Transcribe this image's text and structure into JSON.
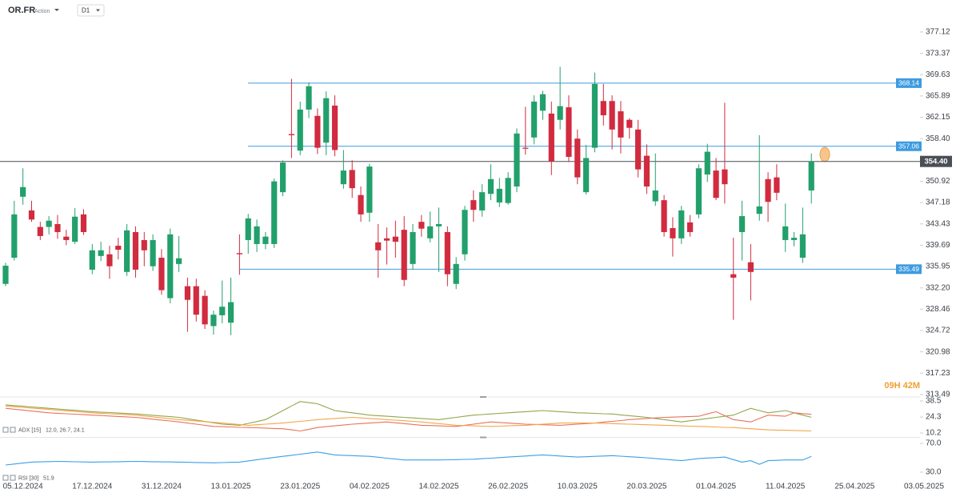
{
  "chart_data": {
    "type": "candlestick",
    "symbol": "OR.FR",
    "instrument_type": "Action",
    "timeframe": "D1",
    "categories": [
      null,
      null,
      "05.12.2024",
      null,
      null,
      null,
      null,
      null,
      null,
      null,
      "17.12.2024",
      null,
      null,
      null,
      null,
      null,
      null,
      null,
      "31.12.2024",
      null,
      null,
      null,
      null,
      null,
      null,
      null,
      "13.01.2025",
      null,
      null,
      null,
      null,
      null,
      null,
      null,
      "23.01.2025",
      null,
      null,
      null,
      null,
      null,
      null,
      null,
      "04.02.2025",
      null,
      null,
      null,
      null,
      null,
      null,
      null,
      "14.02.2025",
      null,
      null,
      null,
      null,
      null,
      null,
      null,
      "26.02.2025",
      null,
      null,
      null,
      null,
      null,
      null,
      null,
      "10.03.2025",
      null,
      null,
      null,
      null,
      null,
      null,
      null,
      "20.03.2025",
      null,
      null,
      null,
      null,
      null,
      null,
      null,
      "01.04.2025",
      null,
      null,
      null,
      null,
      null,
      null,
      null,
      "11.04.2025",
      null,
      null,
      null,
      null,
      null,
      null,
      null,
      "25.04.2025",
      null,
      null,
      null,
      null,
      null,
      null,
      null,
      "03.05.2025"
    ],
    "open": [
      332.9,
      337.5,
      348.2,
      345.8,
      342.9,
      342.9,
      343.4,
      341.2,
      340.3,
      345.1,
      335.4,
      337.8,
      338.1,
      339.6,
      335.0,
      342.0,
      340.6,
      336.0,
      337.5,
      330.4,
      336.4,
      332.5,
      332.5,
      330.8,
      325.5,
      327.4,
      326.1,
      338.3,
      340.6,
      339.9,
      339.9,
      339.9,
      349.0,
      359.2,
      356.3,
      363.5,
      362.4,
      357.7,
      364.2,
      350.4,
      352.9,
      348.5,
      345.4,
      340.2,
      340.9,
      341.2,
      342.4,
      336.4,
      343.8,
      340.9,
      343.0,
      342.0,
      332.9,
      338.1,
      347.6,
      345.8,
      348.7,
      347.2,
      347.1,
      350.0,
      356.8,
      358.6,
      363.3,
      362.8,
      361.7,
      363.9,
      358.4,
      349.0,
      356.8,
      365.0,
      365.0,
      363.2,
      361.7,
      360.0,
      355.4,
      347.4,
      347.6,
      342.7,
      340.9,
      343.7,
      345.1,
      352.1,
      352.8,
      353.0,
      334.6,
      342.0,
      336.7,
      345.2,
      351.3,
      351.6,
      340.6,
      340.6,
      337.5,
      349.3,
      null,
      null,
      null,
      null,
      null,
      null,
      null,
      null,
      null,
      null,
      null,
      null,
      null
    ],
    "high": [
      336.6,
      347.5,
      353.2,
      347.5,
      343.8,
      344.8,
      345.0,
      342.4,
      346.2,
      346.0,
      339.9,
      340.3,
      339.6,
      341.0,
      343.4,
      343.0,
      342.0,
      341.6,
      339.0,
      342.6,
      341.3,
      334.0,
      333.8,
      331.8,
      328.2,
      333.5,
      334.0,
      341.6,
      345.2,
      344.2,
      342.0,
      351.4,
      354.6,
      368.9,
      364.9,
      368.3,
      363.7,
      366.7,
      366.0,
      356.4,
      354.6,
      350.0,
      354.0,
      343.4,
      342.8,
      344.0,
      344.8,
      343.4,
      345.0,
      345.6,
      346.3,
      343.0,
      337.6,
      346.6,
      349.3,
      350.4,
      353.9,
      351.5,
      352.5,
      360.2,
      364.0,
      366.0,
      366.8,
      364.9,
      371.0,
      366.0,
      360.0,
      357.3,
      370.0,
      368.0,
      366.0,
      365.0,
      362.0,
      361.7,
      357.4,
      355.8,
      348.5,
      344.6,
      346.6,
      345.0,
      353.9,
      357.5,
      355.0,
      364.7,
      341.0,
      347.5,
      339.9,
      359.0,
      352.5,
      353.9,
      347.0,
      342.0,
      346.3,
      355.8,
      null,
      null,
      null,
      null,
      null,
      null,
      null,
      null,
      null,
      null,
      null,
      null,
      null
    ],
    "low": [
      332.5,
      337.0,
      346.8,
      343.8,
      340.6,
      341.6,
      340.8,
      339.7,
      339.9,
      341.5,
      334.6,
      336.9,
      333.8,
      337.2,
      334.3,
      334.0,
      336.0,
      335.2,
      331.0,
      329.5,
      335.0,
      324.5,
      326.3,
      325.0,
      324.0,
      326.0,
      323.9,
      334.5,
      338.2,
      338.5,
      339.0,
      339.2,
      348.3,
      355.0,
      355.5,
      362.0,
      355.7,
      355.5,
      355.3,
      349.6,
      348.0,
      343.8,
      343.8,
      334.0,
      336.3,
      337.5,
      332.5,
      335.4,
      341.2,
      340.2,
      335.0,
      332.5,
      332.0,
      337.0,
      343.8,
      344.7,
      347.6,
      346.4,
      346.8,
      349.0,
      355.6,
      357.4,
      361.7,
      352.0,
      360.0,
      354.3,
      350.4,
      348.6,
      356.0,
      360.7,
      356.5,
      355.8,
      358.4,
      351.6,
      348.7,
      346.6,
      341.2,
      337.7,
      339.9,
      341.2,
      344.4,
      350.8,
      347.6,
      347.0,
      326.6,
      337.0,
      330.0,
      344.0,
      343.8,
      347.6,
      338.5,
      339.5,
      336.6,
      347.0,
      null,
      null,
      null,
      null,
      null,
      null,
      null,
      null,
      null,
      null,
      null,
      null,
      null
    ],
    "close": [
      336.1,
      345.1,
      349.9,
      344.2,
      341.3,
      344.0,
      342.0,
      340.6,
      344.7,
      342.0,
      338.8,
      338.8,
      336.0,
      338.9,
      342.3,
      335.4,
      338.8,
      340.6,
      331.8,
      341.6,
      337.4,
      330.1,
      327.5,
      325.8,
      327.5,
      328.9,
      329.7,
      338.1,
      344.4,
      343.0,
      341.2,
      350.9,
      354.2,
      359.0,
      363.5,
      367.6,
      356.8,
      365.5,
      356.4,
      352.8,
      349.7,
      345.1,
      353.5,
      338.8,
      340.5,
      340.3,
      333.6,
      342.0,
      342.6,
      343.0,
      343.4,
      334.6,
      336.4,
      345.9,
      345.9,
      349.0,
      351.3,
      349.6,
      351.5,
      359.3,
      356.7,
      364.9,
      366.2,
      354.4,
      364.1,
      355.2,
      351.6,
      355.0,
      368.0,
      362.5,
      360.0,
      358.6,
      360.3,
      353.0,
      350.0,
      349.3,
      342.0,
      340.9,
      345.8,
      342.0,
      353.2,
      356.1,
      348.0,
      350.4,
      334.0,
      344.8,
      335.0,
      346.5,
      347.3,
      348.9,
      343.0,
      341.0,
      341.6,
      354.4,
      null,
      null,
      null,
      null,
      null,
      null,
      null,
      null,
      null,
      null,
      null,
      null,
      null
    ],
    "up_color": "#22a06b",
    "down_color": "#d12b3f",
    "ylim": [
      313.2,
      378.8
    ],
    "yticks": [
      377.12,
      373.37,
      369.63,
      365.89,
      362.15,
      {
        "value": 358.4,
        "label": "358.40"
      },
      350.92,
      347.18,
      343.43,
      339.69,
      335.95,
      {
        "value": 332.2,
        "label": "332.20"
      },
      328.46,
      324.72,
      320.98,
      317.23,
      313.49
    ],
    "grid": false,
    "levels": [
      368.14,
      357.06,
      335.49
    ],
    "level_color": "#3d9be0",
    "last_price": {
      "value": 354.4,
      "label": "354.40"
    },
    "last_price_color": "#4a4f55",
    "countdown": "09H 42M",
    "adx": {
      "label": "ADX [15]",
      "readout": "12.0, 26.7, 24.1",
      "ylim": [
        7.4,
        41.3
      ],
      "yticks": [
        38.5,
        24.3,
        10.2
      ],
      "series": [
        {
          "color": "#8fa84a",
          "values": [
            35,
            34.4,
            33.8,
            33.2,
            32.6,
            32,
            31.4,
            30.8,
            30.2,
            29.6,
            29,
            28.6,
            28.2,
            27.8,
            27.4,
            27,
            26.4,
            25.8,
            25.2,
            24.6,
            24,
            22.8,
            21.6,
            20.4,
            19.2,
            18,
            17.5,
            17,
            18.7,
            20.3,
            22,
            26,
            30,
            34,
            38,
            37,
            36,
            33,
            30,
            29,
            28,
            27,
            26,
            25.5,
            25,
            24.5,
            24,
            23.5,
            23,
            22.5,
            22,
            23,
            24,
            25,
            26,
            26.5,
            27,
            27.5,
            28,
            28.5,
            29,
            29.5,
            30,
            29.5,
            29,
            28.5,
            28,
            27.8,
            27.5,
            27.2,
            27,
            26.2,
            25.5,
            24.8,
            24,
            23,
            22,
            21,
            20,
            21,
            22,
            23,
            24,
            25,
            26,
            29,
            32,
            30,
            28,
            29,
            30,
            28,
            26,
            24.1
          ]
        },
        {
          "color": "#e8735a",
          "values": [
            32,
            31.2,
            30.4,
            29.6,
            28.8,
            28,
            27.6,
            27.2,
            26.8,
            26.4,
            26,
            25.6,
            25.2,
            24.8,
            24.4,
            24,
            23.2,
            22.4,
            21.6,
            20.8,
            20,
            19,
            18,
            17,
            16,
            15.8,
            15.5,
            15.2,
            15,
            14.8,
            14.5,
            14.2,
            14,
            13,
            12,
            13.5,
            15,
            15.8,
            16.5,
            17.2,
            18,
            18.5,
            19,
            19.5,
            20,
            19.2,
            18.5,
            17.8,
            17,
            16.8,
            16.5,
            16.2,
            16,
            17,
            18,
            19,
            20,
            19.5,
            19,
            18.5,
            18,
            17.8,
            17.5,
            17.2,
            17,
            17.5,
            18,
            18.5,
            19,
            19.8,
            20.5,
            21.2,
            22,
            22.5,
            23,
            23.5,
            24,
            24.2,
            24.5,
            24.8,
            25,
            27,
            29,
            25.5,
            22,
            21,
            20,
            23,
            26,
            25.5,
            25,
            28,
            27.3,
            26.7
          ]
        },
        {
          "color": "#f5a54a",
          "values": [
            34,
            33.4,
            32.8,
            32.2,
            31.6,
            31,
            30.4,
            29.8,
            29.2,
            28.6,
            28,
            27.6,
            27.2,
            26.8,
            26.4,
            26,
            25.2,
            24.4,
            23.6,
            22.8,
            22,
            21.4,
            20.8,
            20.2,
            19.6,
            19,
            18.3,
            17.7,
            17,
            17.5,
            18,
            18.5,
            19,
            19.8,
            20.5,
            21.2,
            22,
            22.5,
            23,
            23.5,
            24,
            23.5,
            23,
            22.5,
            22,
            21.5,
            21,
            20.5,
            20,
            19.2,
            18.5,
            17.8,
            17,
            16.8,
            16.5,
            16.2,
            16,
            16.2,
            16.5,
            16.8,
            17,
            17.5,
            18,
            18.5,
            19,
            19,
            19,
            19,
            19,
            18.8,
            18.5,
            18.2,
            18,
            17.8,
            17.5,
            17.2,
            17,
            16.8,
            16.5,
            16.2,
            16,
            15.8,
            15.5,
            15.2,
            15,
            14.5,
            14,
            13.5,
            13,
            12.8,
            12.6,
            12.4,
            12.2,
            12
          ]
        }
      ]
    },
    "rsi": {
      "label": "RSI [30]",
      "readout": "51.9",
      "ylim": [
        18.9,
        76.7
      ],
      "yticks": [
        {
          "value": 70,
          "label": "70.0"
        },
        {
          "value": 30,
          "label": "30.0"
        }
      ],
      "series": [
        {
          "color": "#3aa0e8",
          "values": [
            40,
            41.3,
            42.7,
            44,
            44.3,
            44.7,
            45,
            44.8,
            44.5,
            44.2,
            44,
            44.2,
            44.4,
            44.6,
            44.8,
            45,
            44.8,
            44.6,
            44.4,
            44.2,
            44,
            43.8,
            43.5,
            43.2,
            43,
            43.3,
            43.7,
            44,
            45.7,
            47.3,
            49,
            50.5,
            52,
            53.5,
            55,
            56.5,
            58,
            56,
            54,
            53.5,
            53,
            52.5,
            52,
            50.8,
            49.5,
            48.3,
            47,
            47,
            47,
            47,
            47,
            47.2,
            47.5,
            47.8,
            48,
            48.8,
            49.5,
            50.2,
            51,
            51.8,
            52.5,
            53.2,
            54,
            53.2,
            52.5,
            51.8,
            51,
            51.5,
            52,
            52.5,
            53,
            52.2,
            51.5,
            50.8,
            50,
            49,
            48,
            47,
            46,
            47.5,
            49,
            49.7,
            50.3,
            51,
            47.5,
            44,
            46,
            41,
            46,
            46.5,
            47,
            47,
            47,
            51.9
          ]
        }
      ]
    }
  }
}
